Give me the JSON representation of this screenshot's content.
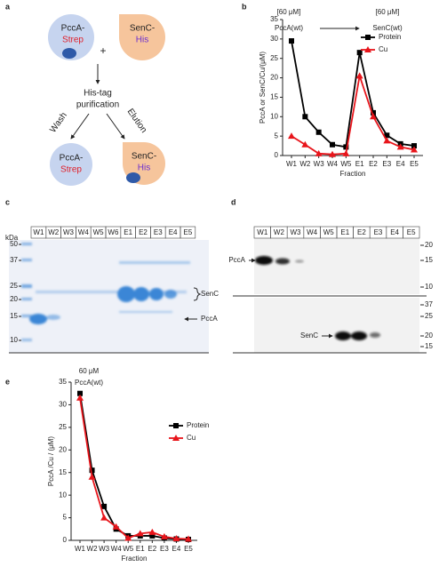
{
  "panels": {
    "letters": [
      "a",
      "b",
      "c",
      "d",
      "e"
    ],
    "diagram": {
      "input_a": [
        "PccA-",
        "Strep"
      ],
      "input_b": [
        "SenC-",
        "His"
      ],
      "plus": "+",
      "step": [
        "His-tag",
        "purification"
      ],
      "wash": "Wash",
      "elution": "Elution",
      "output_a": [
        "PccA-",
        "Strep"
      ],
      "output_b": [
        "SenC-",
        "His"
      ]
    },
    "gel_c": {
      "unit": "kDa",
      "markers": [
        "50",
        "37",
        "25",
        "20",
        "15",
        "10"
      ],
      "lanes": [
        "W1",
        "W2",
        "W3",
        "W4",
        "W5",
        "W6",
        "E1",
        "E2",
        "E3",
        "E4",
        "E5"
      ],
      "band_senc": "SenC",
      "band_pcca": "PccA"
    },
    "gel_d": {
      "lanes": [
        "W1",
        "W2",
        "W3",
        "W4",
        "W5",
        "E1",
        "E2",
        "E3",
        "E4",
        "E5"
      ],
      "markers_top": [
        "20",
        "15",
        "10"
      ],
      "markers_bottom": [
        "37",
        "25",
        "20",
        "15"
      ],
      "band_pcca": "PccA",
      "band_senc": "SenC"
    }
  },
  "chart_data": [
    {
      "type": "line",
      "annotations": [
        "[60 μM]",
        "PccA(wt)",
        "[60 μM]",
        "SenC(wt)"
      ],
      "x_label": "Fraction",
      "y_label": "PccA or SenC/Cu/(μM)",
      "categories": [
        "W1",
        "W2",
        "W3",
        "W4",
        "W5",
        "E1",
        "E2",
        "E3",
        "E4",
        "E5"
      ],
      "series": [
        {
          "name": "Protein",
          "color": "#000000",
          "marker": "square",
          "values": [
            29.5,
            10,
            6,
            2.8,
            2.2,
            26.5,
            11,
            5.2,
            3,
            2.5
          ]
        },
        {
          "name": "Cu",
          "color": "#e8151b",
          "marker": "triangle",
          "values": [
            5,
            2.8,
            0.5,
            0.3,
            0.5,
            20.5,
            10,
            3.8,
            2.2,
            1.5
          ]
        }
      ],
      "ylim": [
        0,
        35
      ],
      "yticks": [
        0,
        5,
        10,
        15,
        20,
        25,
        30,
        35
      ],
      "legend": "upper right"
    },
    {
      "type": "line",
      "annotations": [
        "60 μM",
        "PccA(wt)"
      ],
      "x_label": "Fraction",
      "y_label": "PccA /Cu / (μM)",
      "categories": [
        "W1",
        "W2",
        "W3",
        "W4",
        "W5",
        "E1",
        "E2",
        "E3",
        "E4",
        "E5"
      ],
      "series": [
        {
          "name": "Protein",
          "color": "#000000",
          "marker": "square",
          "values": [
            32.5,
            15.5,
            7.5,
            2.5,
            1,
            1,
            1,
            0.5,
            0.3,
            0.2
          ]
        },
        {
          "name": "Cu",
          "color": "#e8151b",
          "marker": "triangle",
          "values": [
            31.5,
            14,
            5,
            3,
            0.5,
            1.5,
            1.8,
            0.8,
            0.4,
            0.3
          ]
        }
      ],
      "ylim": [
        0,
        35
      ],
      "yticks": [
        0,
        5,
        10,
        15,
        20,
        25,
        30,
        35
      ],
      "legend": "center right"
    }
  ]
}
